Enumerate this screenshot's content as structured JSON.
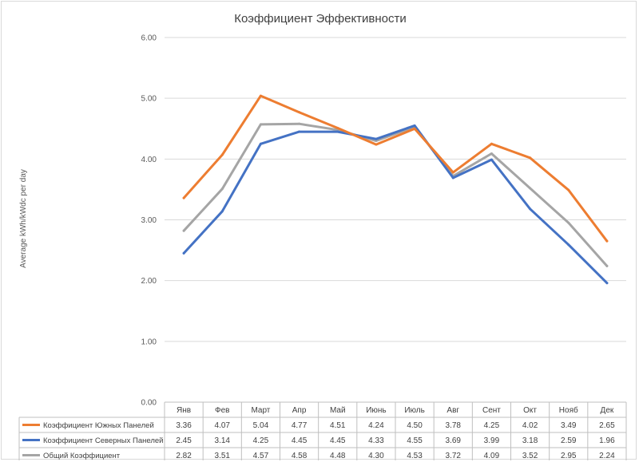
{
  "chart_data": {
    "type": "line",
    "title": "Коэффициент Эффективности",
    "ylabel": "Average kWh/kWdc per day",
    "xlabel": "",
    "ylim": [
      0,
      6
    ],
    "yticks": [
      "0.00",
      "1.00",
      "2.00",
      "3.00",
      "4.00",
      "5.00",
      "6.00"
    ],
    "grid": true,
    "legend": "data-table-bottom",
    "categories": [
      "Янв",
      "Фев",
      "Март",
      "Апр",
      "Май",
      "Июнь",
      "Июль",
      "Авг",
      "Сент",
      "Окт",
      "Нояб",
      "Дек"
    ],
    "series": [
      {
        "name": "Коэффициент Южных Панелей",
        "color": "#ED7D31",
        "values": [
          3.36,
          4.07,
          5.04,
          4.77,
          4.51,
          4.24,
          4.5,
          3.78,
          4.25,
          4.02,
          3.49,
          2.65
        ],
        "labels": [
          "3.36",
          "4.07",
          "5.04",
          "4.77",
          "4.51",
          "4.24",
          "4.50",
          "3.78",
          "4.25",
          "4.02",
          "3.49",
          "2.65"
        ]
      },
      {
        "name": "Коэффициент Северных Панелей",
        "color": "#4472C4",
        "values": [
          2.45,
          3.14,
          4.25,
          4.45,
          4.45,
          4.33,
          4.55,
          3.69,
          3.99,
          3.18,
          2.59,
          1.96
        ],
        "labels": [
          "2.45",
          "3.14",
          "4.25",
          "4.45",
          "4.45",
          "4.33",
          "4.55",
          "3.69",
          "3.99",
          "3.18",
          "2.59",
          "1.96"
        ]
      },
      {
        "name": "Общий Коэффициент",
        "color": "#A5A5A5",
        "values": [
          2.82,
          3.51,
          4.57,
          4.58,
          4.48,
          4.3,
          4.53,
          3.72,
          4.09,
          3.52,
          2.95,
          2.24
        ],
        "labels": [
          "2.82",
          "3.51",
          "4.57",
          "4.58",
          "4.48",
          "4.30",
          "4.53",
          "3.72",
          "4.09",
          "3.52",
          "2.95",
          "2.24"
        ]
      }
    ]
  }
}
